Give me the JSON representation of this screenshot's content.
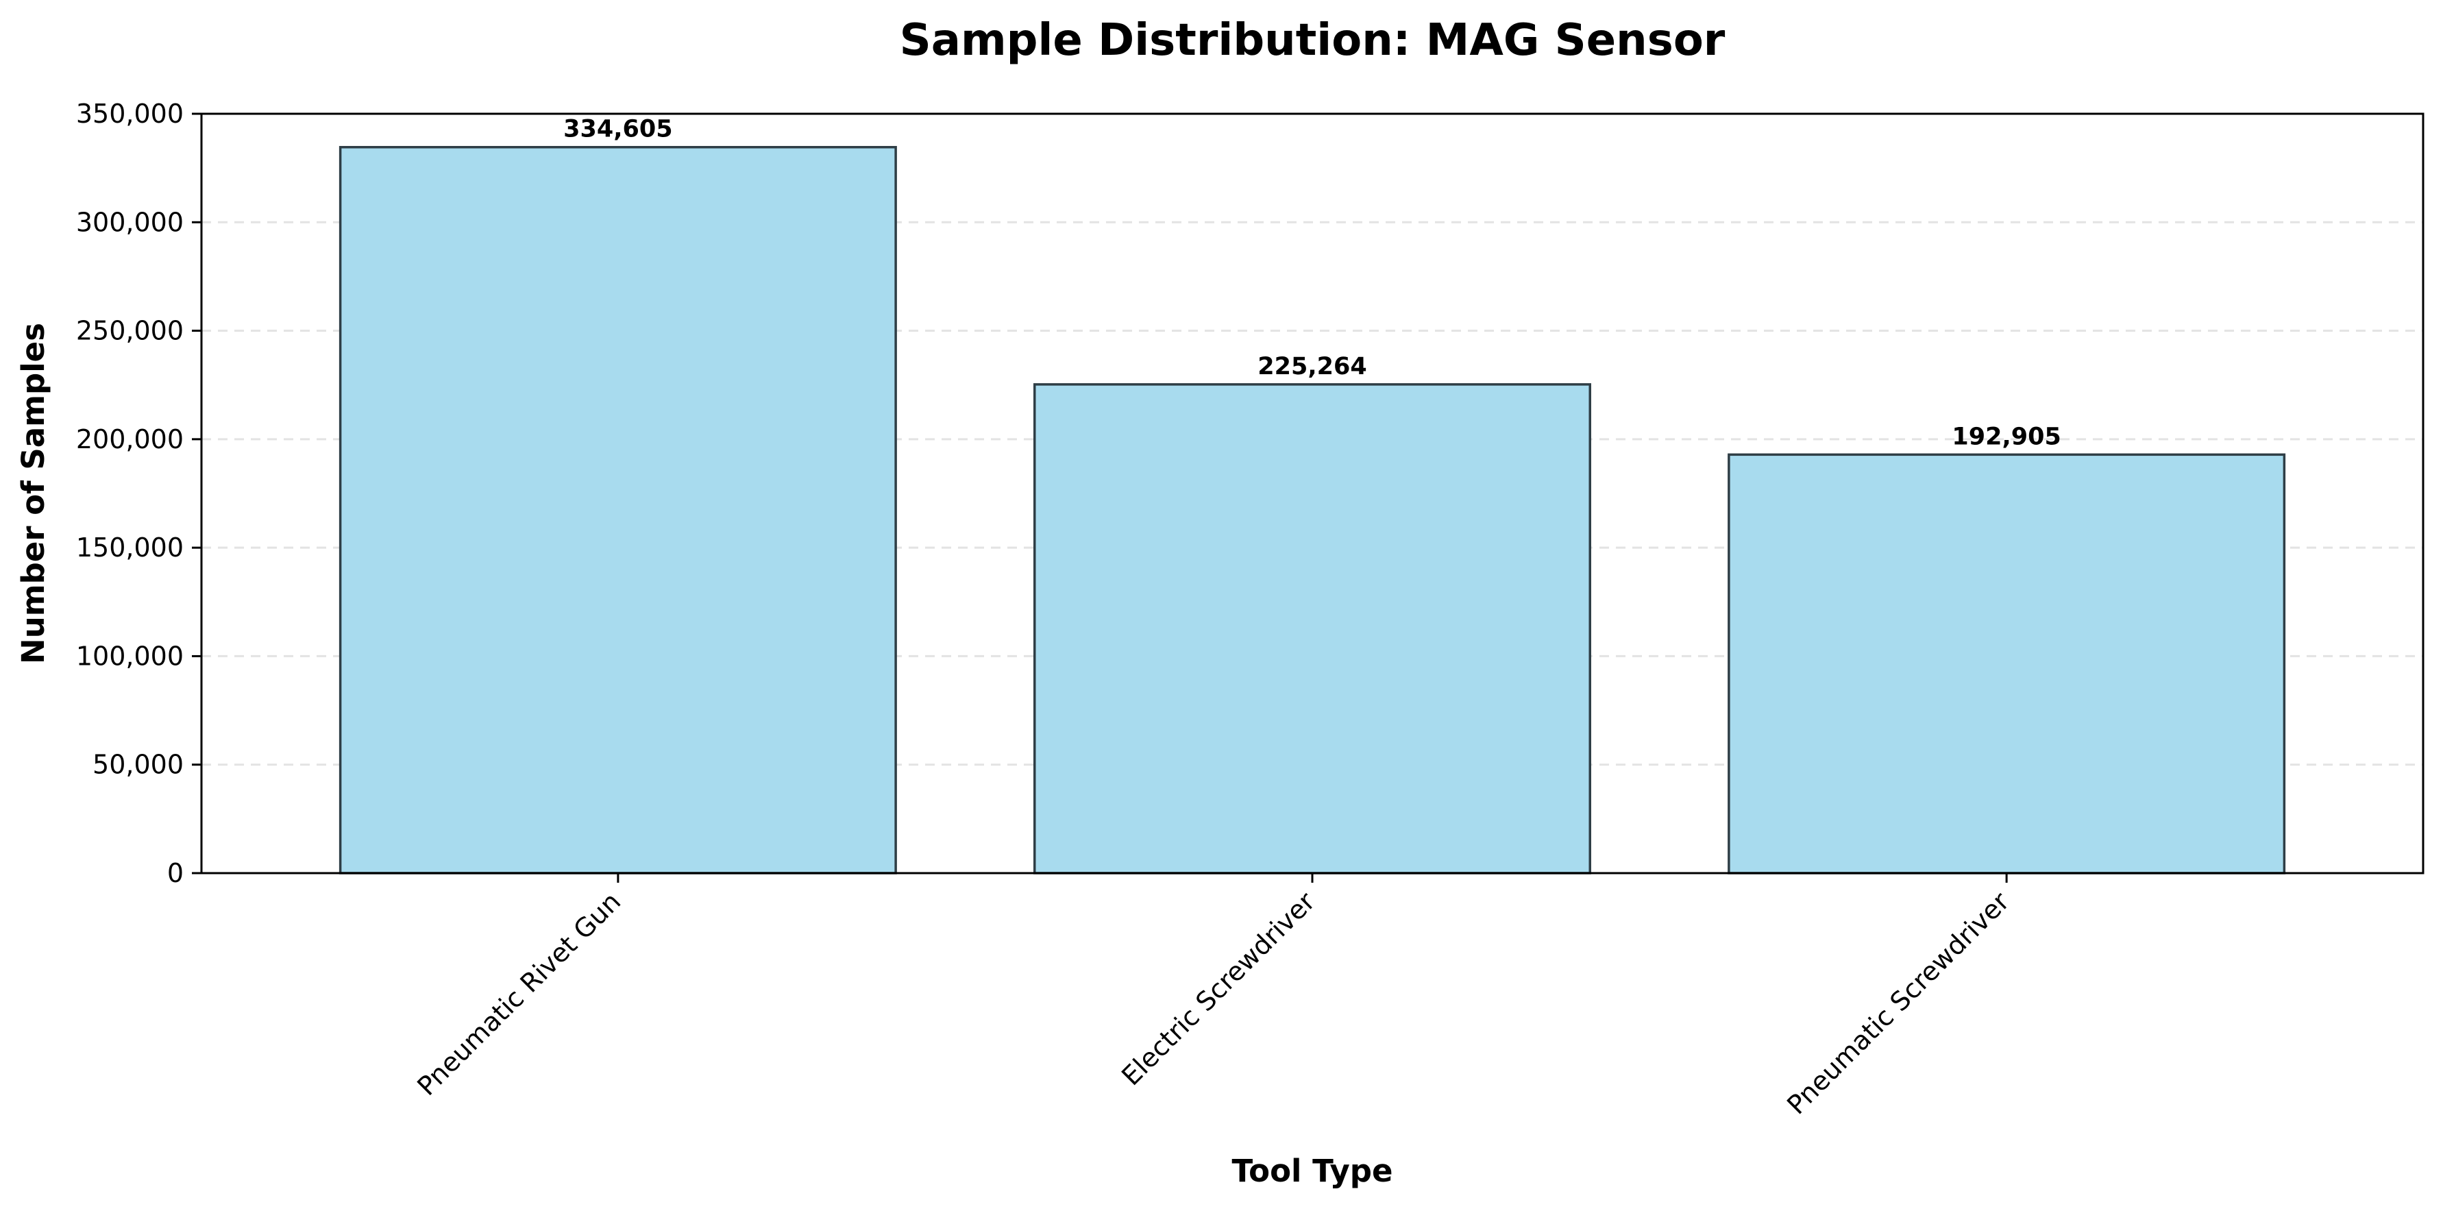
{
  "chart_data": {
    "type": "bar",
    "title": "Sample Distribution: MAG Sensor",
    "xlabel": "Tool Type",
    "ylabel": "Number of Samples",
    "categories": [
      "Pneumatic Rivet Gun",
      "Electric Screwdriver",
      "Pneumatic Screwdriver"
    ],
    "values": [
      334605,
      225264,
      192905
    ],
    "data_labels": [
      "334,605",
      "225,264",
      "192,905"
    ],
    "ylim": [
      0,
      350000
    ],
    "yticks": [
      0,
      50000,
      100000,
      150000,
      200000,
      250000,
      300000,
      350000
    ],
    "ytick_labels": [
      "0",
      "50,000",
      "100,000",
      "150,000",
      "200,000",
      "250,000",
      "300,000",
      "350,000"
    ],
    "grid": "y-dashed",
    "legend": "none",
    "colors": {
      "bar_fill": "#a8dbee",
      "bar_edge": "#2f3e46",
      "grid": "#e3e3e3",
      "axis": "#000000"
    }
  }
}
